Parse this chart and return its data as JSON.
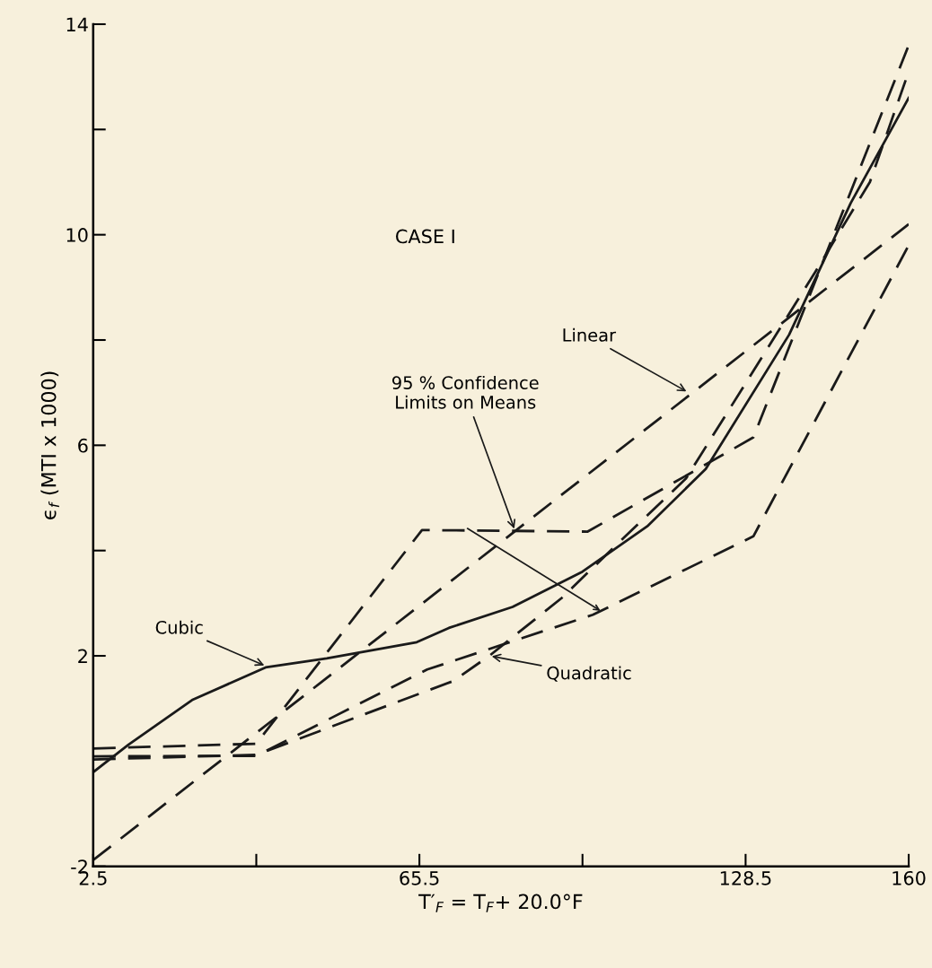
{
  "chart_data": {
    "type": "line",
    "title": "CASE I",
    "xlabel": "T′$_{F}$ = T$_{F}$+ 20.0°F",
    "ylabel": "ϵ$_{f}$ (MTI x 1000)",
    "xlim": [
      2.5,
      160
    ],
    "xticks": [
      2.5,
      {
        "value": 34,
        "label": null
      },
      65.5,
      {
        "value": 97,
        "label": null
      },
      128.5,
      160
    ],
    "ylim": [
      -2,
      14
    ],
    "yticks": [
      -2,
      2,
      {
        "value": 4,
        "label": null
      },
      6,
      {
        "value": 8,
        "label": null
      },
      10,
      {
        "value": 12,
        "label": null
      },
      14
    ],
    "grid": false,
    "legend": false,
    "series": [
      {
        "color": "#1a1a1a",
        "line_style": "dashed",
        "x": [
          2.5,
          34,
          66,
          98,
          130,
          160
        ],
        "values": [
          0.24,
          0.33,
          4.39,
          4.36,
          6.15,
          13.6
        ]
      },
      {
        "color": "#1a1a1a",
        "line_style": "dashed",
        "x": [
          2.5,
          34,
          67,
          99,
          130,
          160
        ],
        "values": [
          0.09,
          0.1,
          1.74,
          2.78,
          4.27,
          9.8
        ]
      },
      {
        "color": "#1a1a1a",
        "line_style": "dashed",
        "x": [
          2.5,
          160
        ],
        "values": [
          -1.88,
          10.2
        ]
      },
      {
        "color": "#1a1a1a",
        "line_style": "dashed",
        "x": [
          2.5,
          34,
          72,
          79,
          93,
          104,
          117,
          142,
          152.5,
          160
        ],
        "values": [
          0.03,
          0.12,
          1.52,
          2.0,
          3.1,
          4.15,
          5.37,
          9.3,
          11.0,
          13.1
        ]
      },
      {
        "color": "#1a1a1a",
        "line_style": "solid",
        "x": [
          2.5,
          9.3,
          21.6,
          35.8,
          47.6,
          65,
          71.2,
          83.5,
          97,
          109.5,
          120.8,
          136.9,
          148.8,
          160
        ],
        "values": [
          -0.21,
          0.31,
          1.16,
          1.78,
          1.95,
          2.26,
          2.53,
          2.93,
          3.6,
          4.46,
          5.55,
          8.1,
          10.6,
          12.6
        ]
      }
    ],
    "annotations": [
      {
        "text": "Linear",
        "x": 117.5,
        "y": 7.0
      },
      {
        "text": "Cubic",
        "x": 36,
        "y": 1.8
      },
      {
        "text": "Quadratic",
        "x": 79,
        "y": 2.0
      },
      {
        "text": "95 % Confidence\nLimits on Means",
        "x": 84,
        "y": 4.37
      }
    ]
  }
}
